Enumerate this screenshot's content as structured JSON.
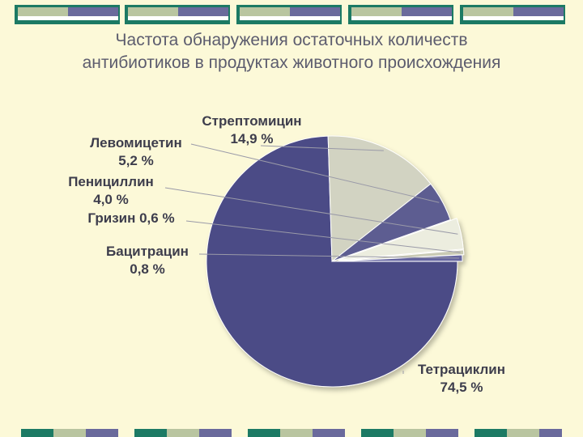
{
  "slide": {
    "title_line1": "Частота обнаружения остаточных количеств",
    "title_line2": "антибиотиков в продуктах животного происхождения"
  },
  "colors": {
    "background": "#fcf9d8",
    "title": "#5c5c6e",
    "deco_green": "#1c7a64",
    "deco_sage": "#b9c5a0",
    "deco_purple": "#6a6a9c"
  },
  "chart_data": {
    "type": "pie",
    "title": "",
    "slices": [
      {
        "name": "Тетрациклин",
        "value": 74.5,
        "label": "74,5 %",
        "color": "#4b4b86"
      },
      {
        "name": "Стрептомицин",
        "value": 14.9,
        "label": "14,9 %",
        "color": "#d2d3c2"
      },
      {
        "name": "Левомицетин",
        "value": 5.2,
        "label": "5,2 %",
        "color": "#5d5d91"
      },
      {
        "name": "Пенициллин",
        "value": 4.0,
        "label": "4,0 %",
        "color": "#eceddf"
      },
      {
        "name": "Гризин",
        "value": 0.6,
        "label": "0,6 %",
        "color": "#c9cab4"
      },
      {
        "name": "Бацитрация",
        "value": 0.8,
        "label": "0,8 %",
        "color": "#6565a0"
      }
    ],
    "labels_display": {
      "Тетрациклин": [
        "Тетрациклин",
        "74,5 %"
      ],
      "Стрептомицин": [
        "Стрептомицин",
        "14,9 %"
      ],
      "Левомицетин": [
        "Левомицетин",
        "5,2 %"
      ],
      "Пенициллин": [
        "Пенициллин",
        "4,0 %"
      ],
      "Гризин": [
        "Гризин  0,6 %"
      ],
      "Бацитрация": [
        "Бацитрацин",
        "0,8 %"
      ]
    },
    "legend": "none"
  }
}
